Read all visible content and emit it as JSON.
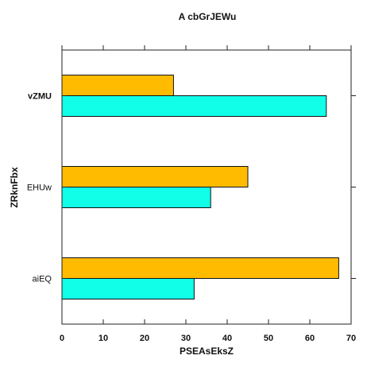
{
  "chart_data": {
    "type": "bar",
    "orientation": "horizontal",
    "title": "A cbGrJEWu",
    "xlabel": "PSEAsEksZ",
    "ylabel": "ZRknFbx",
    "xlim": [
      0,
      70
    ],
    "xticks": [
      "0",
      "10",
      "20",
      "30",
      "40",
      "50",
      "60",
      "70"
    ],
    "categories": [
      "vZMU",
      "EHUw",
      "aiEQ"
    ],
    "bold_category": "vZMU",
    "series": [
      {
        "values": [
          27,
          45,
          67
        ],
        "color": "#ffbb00"
      },
      {
        "values": [
          64,
          36,
          32
        ],
        "color": "#11ffe8"
      }
    ],
    "grid": false,
    "legend": "none"
  }
}
